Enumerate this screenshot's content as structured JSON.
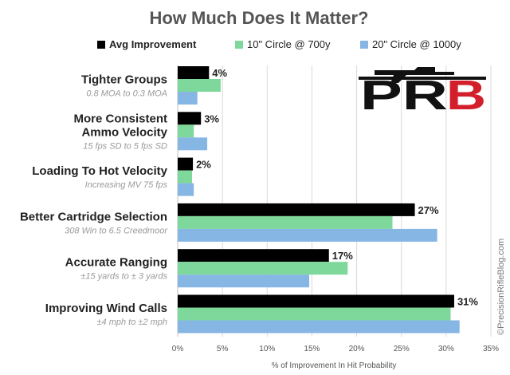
{
  "chart_data": {
    "type": "bar",
    "orientation": "horizontal",
    "title": "How Much Does It Matter?",
    "xlabel": "% of Improvement In Hit Probability",
    "xlim": [
      0,
      35
    ],
    "xticks": [
      "0%",
      "5%",
      "10%",
      "15%",
      "20%",
      "25%",
      "30%",
      "35%"
    ],
    "grid": true,
    "legend_position": "top",
    "categories": [
      {
        "label": [
          "Tighter Groups"
        ],
        "sublabel": "0.8 MOA to 0.3 MOA"
      },
      {
        "label": [
          "More Consistent",
          "Ammo Velocity"
        ],
        "sublabel": "15 fps SD to 5 fps SD"
      },
      {
        "label": [
          "Loading To Hot Velocity"
        ],
        "sublabel": "Increasing MV 75 fps"
      },
      {
        "label": [
          "Better Cartridge Selection"
        ],
        "sublabel": "308 Win to 6.5 Creedmoor"
      },
      {
        "label": [
          "Accurate Ranging"
        ],
        "sublabel": "±15 yards to ± 3 yards"
      },
      {
        "label": [
          "Improving Wind Calls"
        ],
        "sublabel": "±4 mph to ±2 mph"
      }
    ],
    "series": [
      {
        "name": "Avg Improvement",
        "color": "#000000",
        "values": [
          3.5,
          2.6,
          1.7,
          26.5,
          16.9,
          30.9
        ]
      },
      {
        "name": "10\" Circle @ 700y",
        "color": "#7ed89b",
        "values": [
          4.8,
          1.8,
          1.6,
          24.0,
          19.0,
          30.5
        ]
      },
      {
        "name": "20\" Circle @ 1000y",
        "color": "#86b6e3",
        "values": [
          2.2,
          3.3,
          1.8,
          29.0,
          14.7,
          31.5
        ]
      }
    ],
    "data_labels": [
      "4%",
      "3%",
      "2%",
      "27%",
      "17%",
      "31%"
    ]
  },
  "logo": {
    "text": "PRB"
  },
  "credit": "©PrecisionRifleBlog.com"
}
